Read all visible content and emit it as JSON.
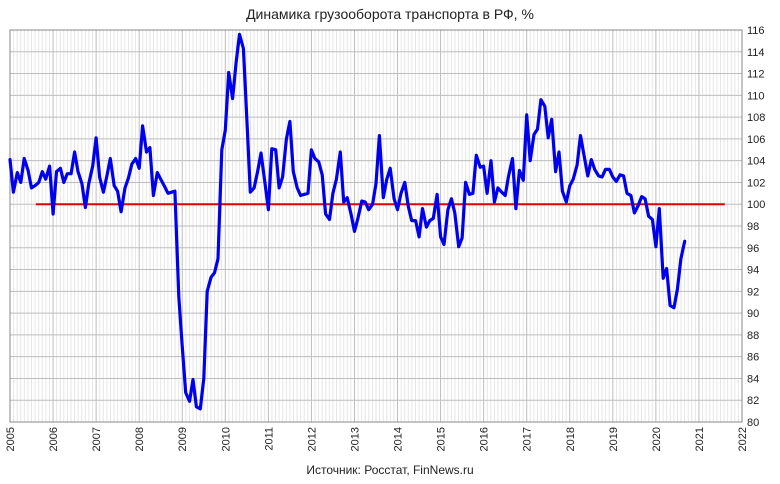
{
  "chart_data": {
    "type": "line",
    "title": "Динамика грузооборота транспорта в РФ, %",
    "source": "Источник: Росстат, FinNews.ru",
    "xlabel": "",
    "ylabel": "",
    "xlim": [
      2005,
      2022
    ],
    "ylim": [
      80,
      116
    ],
    "x_ticks": [
      2005,
      2006,
      2007,
      2008,
      2009,
      2010,
      2011,
      2012,
      2013,
      2014,
      2015,
      2016,
      2017,
      2018,
      2019,
      2020,
      2021,
      2022
    ],
    "y_ticks": [
      80,
      82,
      84,
      86,
      88,
      90,
      92,
      94,
      96,
      98,
      100,
      102,
      104,
      106,
      108,
      110,
      112,
      114,
      116
    ],
    "grid": true,
    "legend": "none",
    "reference_line": {
      "value": 100,
      "x_range": [
        2005.6,
        2021.6
      ],
      "color": "#e00000"
    },
    "series": [
      {
        "color": "#0000ee",
        "x": [
          2005.0,
          2005.08,
          2005.17,
          2005.25,
          2005.33,
          2005.42,
          2005.5,
          2005.58,
          2005.67,
          2005.75,
          2005.83,
          2005.92,
          2006.0,
          2006.08,
          2006.17,
          2006.25,
          2006.33,
          2006.42,
          2006.5,
          2006.58,
          2006.67,
          2006.75,
          2006.83,
          2006.92,
          2007.0,
          2007.08,
          2007.17,
          2007.25,
          2007.33,
          2007.42,
          2007.5,
          2007.58,
          2007.67,
          2007.75,
          2007.83,
          2007.92,
          2008.0,
          2008.08,
          2008.17,
          2008.25,
          2008.33,
          2008.42,
          2008.5,
          2008.58,
          2008.67,
          2008.75,
          2008.83,
          2008.92,
          2009.0,
          2009.08,
          2009.17,
          2009.25,
          2009.33,
          2009.42,
          2009.5,
          2009.58,
          2009.67,
          2009.75,
          2009.83,
          2009.92,
          2010.0,
          2010.08,
          2010.17,
          2010.25,
          2010.33,
          2010.42,
          2010.5,
          2010.58,
          2010.67,
          2010.75,
          2010.83,
          2010.92,
          2011.0,
          2011.08,
          2011.17,
          2011.25,
          2011.33,
          2011.42,
          2011.5,
          2011.58,
          2011.67,
          2011.75,
          2011.83,
          2011.92,
          2012.0,
          2012.08,
          2012.17,
          2012.25,
          2012.33,
          2012.42,
          2012.5,
          2012.58,
          2012.67,
          2012.75,
          2012.83,
          2012.92,
          2013.0,
          2013.08,
          2013.17,
          2013.25,
          2013.33,
          2013.42,
          2013.5,
          2013.58,
          2013.67,
          2013.75,
          2013.83,
          2013.92,
          2014.0,
          2014.08,
          2014.17,
          2014.25,
          2014.33,
          2014.42,
          2014.5,
          2014.58,
          2014.67,
          2014.75,
          2014.83,
          2014.92,
          2015.0,
          2015.08,
          2015.17,
          2015.25,
          2015.33,
          2015.42,
          2015.5,
          2015.58,
          2015.67,
          2015.75,
          2015.83,
          2015.92,
          2016.0,
          2016.08,
          2016.17,
          2016.25,
          2016.33,
          2016.42,
          2016.5,
          2016.58,
          2016.67,
          2016.75,
          2016.83,
          2016.92,
          2017.0,
          2017.08,
          2017.17,
          2017.25,
          2017.33,
          2017.42,
          2017.5,
          2017.58,
          2017.67,
          2017.75,
          2017.83,
          2017.92,
          2018.0,
          2018.08,
          2018.17,
          2018.25,
          2018.33,
          2018.42,
          2018.5,
          2018.58,
          2018.67,
          2018.75,
          2018.83,
          2018.92,
          2019.0,
          2019.08,
          2019.17,
          2019.25,
          2019.33,
          2019.42,
          2019.5,
          2019.58,
          2019.67,
          2019.75,
          2019.83,
          2019.92,
          2020.0,
          2020.08,
          2020.17,
          2020.25,
          2020.33,
          2020.42,
          2020.5,
          2020.58,
          2020.67
        ],
        "values": [
          104.1,
          101.1,
          102.9,
          102.0,
          104.2,
          103.1,
          101.5,
          101.7,
          102.0,
          103.0,
          102.3,
          103.5,
          99.1,
          103.0,
          103.3,
          102.0,
          102.8,
          102.8,
          104.8,
          103.0,
          101.9,
          99.7,
          101.9,
          103.5,
          106.1,
          102.5,
          101.1,
          102.6,
          104.2,
          101.7,
          101.2,
          99.3,
          101.5,
          102.4,
          103.7,
          104.2,
          103.3,
          107.2,
          104.8,
          105.2,
          100.8,
          102.9,
          102.3,
          101.7,
          101.0,
          101.1,
          101.2,
          91.5,
          87.0,
          82.7,
          81.9,
          83.9,
          81.4,
          81.2,
          84.0,
          92.0,
          93.3,
          93.7,
          95.0,
          105.0,
          106.8,
          112.1,
          109.7,
          113.0,
          115.6,
          114.3,
          107.9,
          101.1,
          101.5,
          103.0,
          104.7,
          102.0,
          99.5,
          105.1,
          105.0,
          101.5,
          102.5,
          106.0,
          107.6,
          103.0,
          101.5,
          100.8,
          100.9,
          101.0,
          105.0,
          104.2,
          103.9,
          102.7,
          99.1,
          98.6,
          101.0,
          102.3,
          104.8,
          100.2,
          100.6,
          99.1,
          97.5,
          98.7,
          100.3,
          100.2,
          99.5,
          100.0,
          101.9,
          106.3,
          100.6,
          102.3,
          103.3,
          100.5,
          99.5,
          101.0,
          102.0,
          99.8,
          98.5,
          98.5,
          97.0,
          99.6,
          97.9,
          98.5,
          98.7,
          100.9,
          97.0,
          96.3,
          99.5,
          100.5,
          99.2,
          96.1,
          96.9,
          102.0,
          100.9,
          101.0,
          104.5,
          103.4,
          103.5,
          101.0,
          104.0,
          100.2,
          101.5,
          101.1,
          100.8,
          102.6,
          104.2,
          99.6,
          103.1,
          102.2,
          108.2,
          104.0,
          106.4,
          106.9,
          109.6,
          109.0,
          106.1,
          107.8,
          103.0,
          104.8,
          101.2,
          100.2,
          101.7,
          102.3,
          103.6,
          106.3,
          104.5,
          102.6,
          104.1,
          103.2,
          102.6,
          102.5,
          103.2,
          103.2,
          102.5,
          102.1,
          102.7,
          102.6,
          101.0,
          100.8,
          99.2,
          99.8,
          100.7,
          100.5,
          98.9,
          98.6,
          96.1,
          99.6,
          93.2,
          94.1,
          90.7,
          90.5,
          92.2,
          95.0,
          96.6
        ]
      }
    ]
  }
}
